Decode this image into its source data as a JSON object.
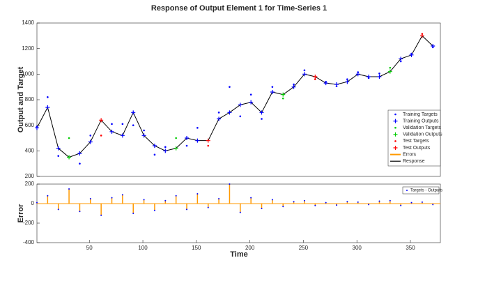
{
  "chart_data": [
    {
      "type": "line",
      "title": "Response of Output Element 1 for Time-Series 1",
      "ylabel": "Output and Target",
      "xlim": [
        1,
        378
      ],
      "ylim": [
        200,
        1400
      ],
      "yticks": [
        200,
        400,
        600,
        800,
        1000,
        1200,
        1400
      ],
      "legend": "lower right",
      "series": [
        {
          "name": "Training Targets",
          "color": "#0000ff",
          "marker": ".",
          "x": [
            1,
            11,
            21,
            41,
            51,
            71,
            81,
            91,
            101,
            111,
            121,
            141,
            151,
            171,
            181,
            191,
            201,
            211,
            221,
            241,
            251,
            271,
            281,
            291,
            301,
            311,
            321,
            341,
            351,
            371
          ],
          "values": [
            590,
            820,
            360,
            300,
            520,
            610,
            610,
            600,
            560,
            370,
            430,
            440,
            580,
            700,
            900,
            670,
            840,
            650,
            900,
            920,
            1030,
            940,
            905,
            960,
            1015,
            970,
            1005,
            1100,
            1160,
            1210
          ]
        },
        {
          "name": "Training Outputs",
          "color": "#0000ff",
          "marker": "+",
          "x": [
            1,
            11,
            21,
            41,
            51,
            71,
            81,
            91,
            101,
            111,
            121,
            141,
            151,
            171,
            181,
            191,
            201,
            211,
            221,
            241,
            251,
            271,
            281,
            291,
            301,
            311,
            321,
            341,
            351,
            371
          ],
          "values": [
            580,
            740,
            420,
            380,
            470,
            550,
            520,
            700,
            520,
            440,
            400,
            500,
            480,
            650,
            700,
            760,
            780,
            700,
            860,
            900,
            1000,
            930,
            920,
            940,
            1000,
            980,
            980,
            1120,
            1150,
            1220
          ]
        },
        {
          "name": "Validation Targets",
          "color": "#00cc00",
          "marker": ".",
          "x": [
            31,
            131,
            231,
            331
          ],
          "values": [
            500,
            500,
            810,
            1050
          ]
        },
        {
          "name": "Validation Outputs",
          "color": "#00cc00",
          "marker": "+",
          "x": [
            31,
            131,
            231,
            331
          ],
          "values": [
            350,
            420,
            840,
            1020
          ]
        },
        {
          "name": "Test Targets",
          "color": "#ff0000",
          "marker": ".",
          "x": [
            61,
            161,
            261,
            361
          ],
          "values": [
            520,
            440,
            960,
            1315
          ]
        },
        {
          "name": "Test Outputs",
          "color": "#ff0000",
          "marker": "+",
          "x": [
            61,
            161,
            261,
            361
          ],
          "values": [
            640,
            480,
            980,
            1300
          ]
        },
        {
          "name": "Response",
          "color": "#000000",
          "marker": "-",
          "x": [
            1,
            11,
            21,
            31,
            41,
            51,
            61,
            71,
            81,
            91,
            101,
            111,
            121,
            131,
            141,
            151,
            161,
            171,
            181,
            191,
            201,
            211,
            221,
            231,
            241,
            251,
            261,
            271,
            281,
            291,
            301,
            311,
            321,
            331,
            341,
            351,
            361,
            371
          ],
          "values": [
            580,
            740,
            420,
            350,
            380,
            470,
            640,
            550,
            520,
            700,
            520,
            440,
            400,
            420,
            500,
            480,
            480,
            650,
            700,
            760,
            780,
            700,
            860,
            840,
            900,
            1000,
            980,
            930,
            920,
            940,
            1000,
            980,
            980,
            1020,
            1120,
            1150,
            1300,
            1220
          ]
        }
      ]
    },
    {
      "type": "stem",
      "xlabel": "Time",
      "ylabel": "Error",
      "xlim": [
        1,
        378
      ],
      "xticks": [
        50,
        100,
        150,
        200,
        250,
        300,
        350
      ],
      "ylim": [
        -400,
        200
      ],
      "yticks": [
        -400,
        -200,
        0,
        200
      ],
      "legend_label": "Targets - Outputs",
      "series": [
        {
          "name": "Errors",
          "color": "#ff9900",
          "x": [
            1,
            11,
            21,
            31,
            41,
            51,
            61,
            71,
            81,
            91,
            101,
            111,
            121,
            131,
            141,
            151,
            161,
            171,
            181,
            191,
            201,
            211,
            221,
            231,
            241,
            251,
            261,
            271,
            281,
            291,
            301,
            311,
            321,
            331,
            341,
            351,
            361,
            371
          ],
          "values": [
            10,
            80,
            -60,
            150,
            -80,
            50,
            -120,
            60,
            90,
            -100,
            40,
            -70,
            30,
            80,
            -60,
            100,
            -40,
            50,
            200,
            -90,
            60,
            -50,
            40,
            -30,
            20,
            30,
            -20,
            10,
            -15,
            20,
            15,
            -10,
            25,
            30,
            -20,
            10,
            15,
            -10
          ]
        }
      ]
    }
  ]
}
